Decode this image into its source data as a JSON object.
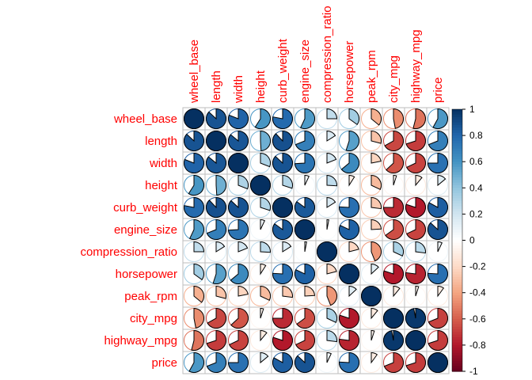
{
  "chart_data": {
    "type": "heatmap",
    "method": "pie",
    "variables": [
      "wheel_base",
      "length",
      "width",
      "height",
      "curb_weight",
      "engine_size",
      "compression_ratio",
      "horsepower",
      "peak_rpm",
      "city_mpg",
      "highway_mpg",
      "price"
    ],
    "matrix": [
      [
        1.0,
        0.87,
        0.81,
        0.59,
        0.78,
        0.57,
        0.25,
        0.35,
        -0.36,
        -0.47,
        -0.54,
        0.58
      ],
      [
        0.87,
        1.0,
        0.86,
        0.49,
        0.88,
        0.69,
        0.16,
        0.55,
        -0.29,
        -0.67,
        -0.7,
        0.69
      ],
      [
        0.81,
        0.86,
        1.0,
        0.31,
        0.87,
        0.74,
        0.19,
        0.64,
        -0.22,
        -0.63,
        -0.68,
        0.75
      ],
      [
        0.59,
        0.49,
        0.31,
        1.0,
        0.3,
        0.07,
        0.26,
        -0.09,
        -0.32,
        -0.05,
        -0.11,
        0.14
      ],
      [
        0.78,
        0.88,
        0.87,
        0.3,
        1.0,
        0.85,
        0.16,
        0.76,
        -0.27,
        -0.75,
        -0.8,
        0.83
      ],
      [
        0.57,
        0.69,
        0.74,
        0.07,
        0.85,
        1.0,
        0.03,
        0.82,
        -0.24,
        -0.65,
        -0.68,
        0.87
      ],
      [
        0.25,
        0.16,
        0.19,
        0.26,
        0.16,
        0.03,
        1.0,
        -0.21,
        -0.44,
        0.32,
        0.27,
        0.07
      ],
      [
        0.35,
        0.55,
        0.64,
        -0.09,
        0.76,
        0.82,
        -0.21,
        1.0,
        0.13,
        -0.8,
        -0.77,
        0.76
      ],
      [
        -0.36,
        -0.29,
        -0.22,
        -0.32,
        -0.27,
        -0.24,
        -0.44,
        0.13,
        1.0,
        -0.11,
        -0.05,
        -0.1
      ],
      [
        -0.47,
        -0.67,
        -0.63,
        -0.05,
        -0.75,
        -0.65,
        0.32,
        -0.8,
        -0.11,
        1.0,
        0.97,
        -0.69
      ],
      [
        -0.54,
        -0.7,
        -0.68,
        -0.11,
        -0.8,
        -0.68,
        0.27,
        -0.77,
        -0.05,
        0.97,
        1.0,
        -0.7
      ],
      [
        0.58,
        0.69,
        0.75,
        0.14,
        0.83,
        0.87,
        0.07,
        0.76,
        -0.1,
        -0.69,
        -0.7,
        1.0
      ]
    ],
    "colorbar": {
      "ticks": [
        "1",
        "0.8",
        "0.6",
        "0.4",
        "0.2",
        "0",
        "-0.2",
        "-0.4",
        "-0.6",
        "-0.8",
        "-1"
      ],
      "range": [
        -1,
        1
      ]
    },
    "colors": {
      "label": "#ff0000",
      "grid": "#bebebe",
      "negative_end": "#67001f",
      "positive_end": "#053061",
      "mid": "#f7f7f7"
    }
  }
}
